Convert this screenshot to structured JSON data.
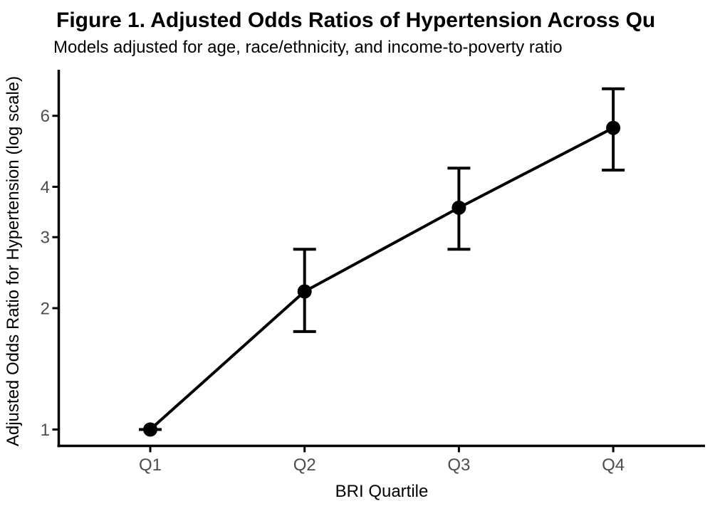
{
  "chart_data": {
    "type": "line",
    "title": "Figure 1. Adjusted Odds Ratios of Hypertension Across Qu",
    "subtitle": "Models adjusted for age, race/ethnicity, and income-to-poverty ratio",
    "categories": [
      "Q1",
      "Q2",
      "Q3",
      "Q4"
    ],
    "series": [
      {
        "name": "Adjusted odds ratio",
        "values": [
          1.0,
          2.2,
          3.55,
          5.6
        ],
        "ci_low": [
          1.0,
          1.75,
          2.8,
          4.4
        ],
        "ci_high": [
          1.0,
          2.8,
          4.45,
          7.0
        ]
      }
    ],
    "xlabel": "BRI Quartile",
    "ylabel": "Adjusted Odds Ratio for Hypertension (log scale)",
    "yscale": "log",
    "yticks": [
      1,
      2,
      3,
      4,
      6
    ],
    "ylim": [
      0.92,
      7.7
    ],
    "grid": false,
    "legend": false,
    "marker": "circle",
    "error_bars": true
  },
  "colors": {
    "text": "#000000",
    "tick_label": "#4d4d4d",
    "series": "#000000",
    "background": "#ffffff"
  }
}
